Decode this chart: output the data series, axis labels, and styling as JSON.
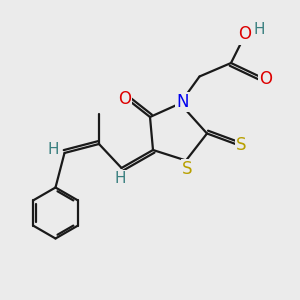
{
  "bg_color": "#ebebeb",
  "bond_color": "#1a1a1a",
  "bond_width": 1.6,
  "atom_colors": {
    "O": "#dd0000",
    "N": "#0000ee",
    "S_yellow": "#b8a000",
    "H": "#3a8080",
    "C": "#1a1a1a"
  }
}
